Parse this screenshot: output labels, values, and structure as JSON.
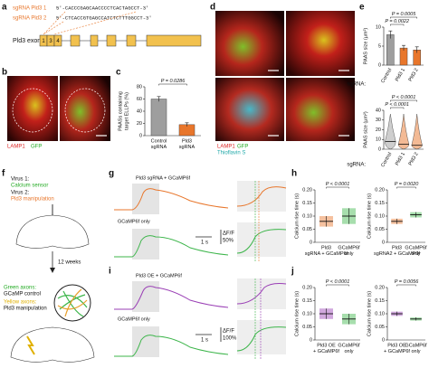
{
  "panel_labels": [
    "a",
    "b",
    "c",
    "d",
    "e",
    "f",
    "g",
    "h",
    "i",
    "j"
  ],
  "a": {
    "sg1_label": "sgRNA Pld3 1",
    "sg1_seq": "5′-CACCCGAGCAACCCCTCACTAGCCT-3′",
    "sg2_label": "sgRNA Pld3 2",
    "sg2_seq": "5′-CTCACCGTGAGCCATCTCTTTGGCCT-3′",
    "exons_label": "Pld3 exons",
    "exons": [
      "1",
      "3",
      "4"
    ]
  },
  "b": {
    "marker1": "LAMP1",
    "marker2": "GFP"
  },
  "d": {
    "marker1": "LAMP1",
    "marker2": "GFP",
    "marker3": "Thioflavin S"
  },
  "e": {
    "group_label_top": "sgRNA:",
    "group_label_bottom": "sgRNA:"
  },
  "f": {
    "virus1": "Virus 1:",
    "virus1_desc": "Calcium sensor",
    "virus2": "Virus 2:",
    "virus2_desc": "Pld3 manipulation",
    "duration": "12 weeks",
    "green": "Green axons:",
    "green_desc": "GCaMP control",
    "yellow": "Yellow axons:",
    "yellow_desc": "Pld3 manipulation"
  },
  "g": {
    "trace1": "Pld3 sgRNA + GCaMP6f",
    "trace2": "GCaMP6f only",
    "time_scale": "1 s",
    "dff": "ΔF/F",
    "amp_scale": "50%"
  },
  "i": {
    "trace1": "Pld3 OE + GCaMP6f",
    "trace2": "GCaMP6f only",
    "time_scale": "1 s",
    "dff": "ΔF/F",
    "amp_scale": "100%"
  },
  "charts": {
    "c": {
      "type": "bar",
      "ylabel": [
        "PAASs containing",
        "target ELLPs (%)"
      ],
      "categories": [
        [
          "Control",
          "sgRNA"
        ],
        [
          "Pld3",
          "sgRNA"
        ]
      ],
      "values": [
        60,
        18
      ],
      "errors": [
        4,
        3
      ],
      "colors": [
        "#9e9e9e",
        "#e8762b"
      ],
      "ylim": [
        0,
        80
      ],
      "yticks": [
        0,
        20,
        40,
        60,
        80
      ],
      "p_values": [
        "P = 0.0286"
      ]
    },
    "e_top": {
      "type": "bar",
      "ylabel": [
        "PAAS size (µm²)"
      ],
      "categories": [
        [
          "Control"
        ],
        [
          "Pld3 1"
        ],
        [
          "Pld3 2"
        ]
      ],
      "values": [
        8,
        4.5,
        4
      ],
      "errors": [
        1,
        0.7,
        0.8
      ],
      "colors": [
        "#9e9e9e",
        "#e8762b",
        "#e8762b"
      ],
      "ylim": [
        0,
        10
      ],
      "yticks": [
        0,
        5,
        10
      ],
      "p_values": [
        "P = 0.0005",
        "P = 0.0022"
      ]
    },
    "e_bottom": {
      "type": "violin",
      "ylabel": [
        "PAAS size (µm²)"
      ],
      "categories": [
        [
          "Control"
        ],
        [
          "Pld3 1"
        ],
        [
          "Pld3 2"
        ]
      ],
      "values": [
        8,
        5,
        4
      ],
      "colors": [
        "#9e9e9e",
        "#e8762b",
        "#e8762b"
      ],
      "ylim": [
        0,
        40
      ],
      "yticks": [
        0,
        10,
        20,
        30,
        40
      ],
      "p_values": [
        "P < 0.0001",
        "P < 0.0001"
      ]
    },
    "h_left": {
      "type": "dot",
      "ylabel": [
        "Calcium rise time (s)"
      ],
      "categories": [
        [
          "Pld3",
          "sgRNA + GCaMP6f"
        ],
        [
          "GCaMP6f",
          "only"
        ]
      ],
      "values": [
        0.08,
        0.1
      ],
      "errors": [
        0.02,
        0.03
      ],
      "colors": [
        "#e8762b",
        "#3cb54a"
      ],
      "ylim": [
        0,
        0.2
      ],
      "yticks": [
        0,
        0.05,
        {
          "value": 0.1,
          "label": "0.10"
        },
        0.15,
        {
          "value": 0.2,
          "label": "0.20"
        }
      ],
      "p_values": [
        "P < 0.0001"
      ]
    },
    "h_right": {
      "type": "dot",
      "ylabel": [
        "Calcium rise time (s)"
      ],
      "categories": [
        [
          "Pld3",
          "sgRNA2 + GCaMP6f"
        ],
        [
          "GCaMP6f",
          "only"
        ]
      ],
      "values": [
        0.08,
        0.105
      ],
      "errors": [
        0.01,
        0.01
      ],
      "colors": [
        "#e8762b",
        "#3cb54a"
      ],
      "ylim": [
        0,
        0.2
      ],
      "yticks": [
        0,
        0.05,
        {
          "value": 0.1,
          "label": "0.10"
        },
        0.15,
        {
          "value": 0.2,
          "label": "0.20"
        }
      ],
      "p_values": [
        "P = 0.0020"
      ]
    },
    "j_left": {
      "type": "dot",
      "ylabel": [
        "Calcium rise time (s)"
      ],
      "categories": [
        [
          "Pld3 OE",
          "+ GCaMP6f"
        ],
        [
          "GCaMP6f",
          "only"
        ]
      ],
      "values": [
        0.1,
        0.08
      ],
      "errors": [
        0.02,
        0.02
      ],
      "colors": [
        "#9a3fb5",
        "#3cb54a"
      ],
      "ylim": [
        0,
        0.2
      ],
      "yticks": [
        0,
        0.05,
        {
          "value": 0.1,
          "label": "0.10"
        },
        0.15,
        {
          "value": 0.2,
          "label": "0.20"
        }
      ],
      "p_values": [
        "P < 0.0001"
      ]
    },
    "j_right": {
      "type": "dot",
      "ylabel": [
        "Calcium rise time (s)"
      ],
      "categories": [
        [
          "Pld3 OE",
          "+ GCaMP6f"
        ],
        [
          "GCaMP6f",
          "only"
        ]
      ],
      "values": [
        0.1,
        0.08
      ],
      "errors": [
        0.008,
        0.006
      ],
      "colors": [
        "#9a3fb5",
        "#3cb54a"
      ],
      "ylim": [
        0,
        0.2
      ],
      "yticks": [
        0,
        0.05,
        {
          "value": 0.1,
          "label": "0.10"
        },
        0.15,
        {
          "value": 0.2,
          "label": "0.20"
        }
      ],
      "p_values": [
        "P = 0.0056"
      ]
    }
  }
}
